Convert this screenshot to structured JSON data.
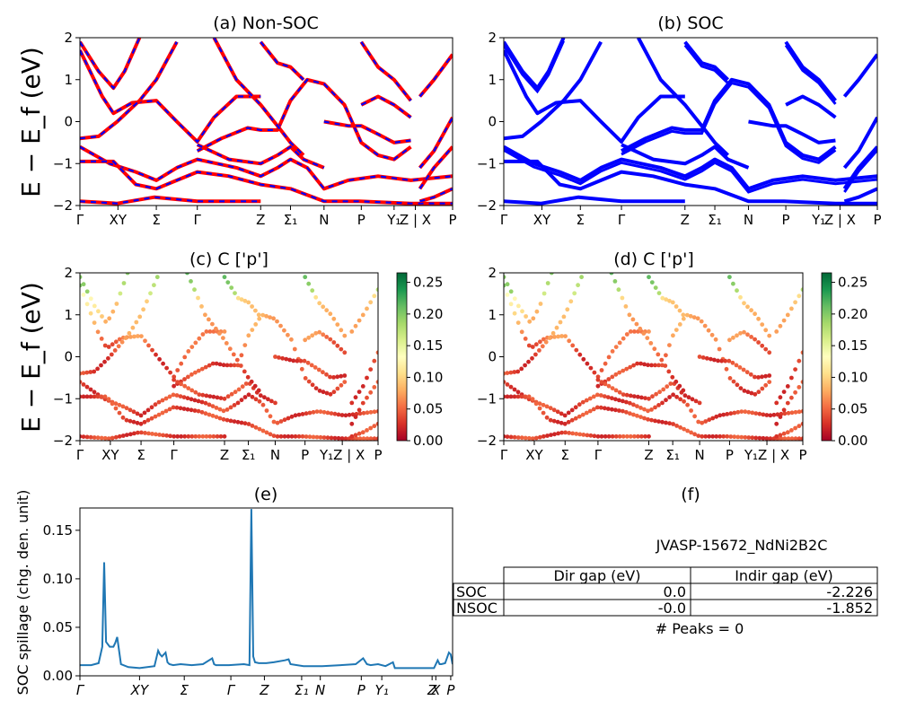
{
  "panels": {
    "a": {
      "title": "(a) Non-SOC",
      "ylabel": "E − E_f (eV)",
      "yticks": [
        "2",
        "1",
        "0",
        "−1",
        "−2"
      ],
      "xticks": [
        "Γ",
        "XY",
        "Σ",
        "Γ",
        "Z",
        "Σ₁",
        "N",
        "P",
        "Y₁",
        "Z | X",
        "P"
      ]
    },
    "b": {
      "title": "(b) SOC",
      "yticks": [
        "2",
        "1",
        "0",
        "−1",
        "−2"
      ],
      "xticks": [
        "Γ",
        "XY",
        "Σ",
        "Γ",
        "Z",
        "Σ₁",
        "N",
        "P",
        "Y₁",
        "Z | X",
        "P"
      ]
    },
    "c": {
      "title": "(c)  C ['p']",
      "ylabel": "E − E_f (eV)",
      "yticks": [
        "2",
        "1",
        "0",
        "−1",
        "−2"
      ],
      "xticks": [
        "Γ",
        "XY",
        "Σ",
        "Γ",
        "Z",
        "Σ₁",
        "N",
        "P",
        "Y₁Z | X",
        "P"
      ],
      "colorbar_ticks": [
        "0.25",
        "0.20",
        "0.15",
        "0.10",
        "0.05",
        "0.00"
      ]
    },
    "d": {
      "title": "(d) C ['p']",
      "yticks": [
        "2",
        "1",
        "0",
        "−1",
        "−2"
      ],
      "xticks": [
        "Γ",
        "XY",
        "Σ",
        "Γ",
        "Z",
        "Σ₁",
        "N",
        "P",
        "Y₁Z | X",
        "P"
      ],
      "colorbar_ticks": [
        "0.25",
        "0.20",
        "0.15",
        "0.10",
        "0.05",
        "0.00"
      ]
    },
    "e": {
      "title": "(e)",
      "ylabel": "SOC spillage (chg. den. unit)",
      "yticks": [
        "0.15",
        "0.10",
        "0.05",
        "0.00"
      ],
      "xticks": [
        "Γ",
        "XY",
        "Σ",
        "Γ",
        "Z",
        "Σ₁",
        "N",
        "P",
        "Y₁",
        "Z",
        "X",
        "P"
      ]
    },
    "f": {
      "title": "(f)",
      "material": "JVASP-15672_NdNi2B2C",
      "table": {
        "headers": [
          "",
          "Dir gap (eV)",
          "Indir gap (eV)"
        ],
        "rows": [
          [
            "SOC",
            "0.0",
            "-2.226"
          ],
          [
            "NSOC",
            "-0.0",
            "-1.852"
          ]
        ]
      },
      "peaks": "# Peaks = 0"
    }
  },
  "colors": {
    "nonsoc_red": "#ff0000",
    "soc_blue": "#0000ff",
    "spillage_line": "#1f77b4",
    "colormap": "RdYlGn"
  },
  "chart_data": [
    {
      "type": "line",
      "title": "(a) Non-SOC",
      "ylabel": "E − E_f (eV)",
      "ylim": [
        -2,
        2
      ],
      "xlim": [
        0,
        1
      ],
      "kpath": [
        "Γ",
        "X",
        "Y",
        "Σ",
        "Γ",
        "Z",
        "Σ₁",
        "N",
        "P",
        "Y₁",
        "Z",
        "X",
        "P"
      ],
      "kpath_positions": [
        0,
        0.09,
        0.115,
        0.205,
        0.315,
        0.485,
        0.565,
        0.655,
        0.755,
        0.843,
        0.888,
        0.912,
        1.0
      ],
      "series": [
        {
          "values": [
            [
              0,
              1.9
            ],
            [
              0.05,
              1.2
            ],
            [
              0.09,
              0.8
            ],
            [
              0.12,
              1.2
            ],
            [
              0.16,
              2.0
            ]
          ]
        },
        {
          "values": [
            [
              0,
              1.7
            ],
            [
              0.06,
              0.6
            ],
            [
              0.09,
              0.2
            ],
            [
              0.14,
              0.45
            ],
            [
              0.205,
              0.5
            ],
            [
              0.26,
              0.0
            ],
            [
              0.315,
              -0.48
            ],
            [
              0.36,
              0.1
            ],
            [
              0.42,
              0.6
            ],
            [
              0.485,
              0.6
            ]
          ]
        },
        {
          "values": [
            [
              0,
              -0.4
            ],
            [
              0.05,
              -0.35
            ],
            [
              0.1,
              0.0
            ],
            [
              0.16,
              0.5
            ],
            [
              0.205,
              1.0
            ],
            [
              0.26,
              1.9
            ]
          ]
        },
        {
          "values": [
            [
              0,
              -0.6
            ],
            [
              0.08,
              -1.0
            ],
            [
              0.15,
              -1.2
            ],
            [
              0.205,
              -1.4
            ],
            [
              0.26,
              -1.1
            ],
            [
              0.315,
              -0.9
            ],
            [
              0.42,
              -1.1
            ],
            [
              0.485,
              -1.3
            ],
            [
              0.53,
              -1.1
            ],
            [
              0.565,
              -0.9
            ],
            [
              0.61,
              -1.1
            ],
            [
              0.655,
              -1.6
            ],
            [
              0.72,
              -1.4
            ],
            [
              0.8,
              -1.3
            ],
            [
              0.888,
              -1.4
            ],
            [
              1.0,
              -1.3
            ]
          ]
        },
        {
          "values": [
            [
              0,
              -0.95
            ],
            [
              0.09,
              -0.95
            ],
            [
              0.15,
              -1.5
            ],
            [
              0.205,
              -1.6
            ],
            [
              0.26,
              -1.4
            ],
            [
              0.315,
              -1.2
            ],
            [
              0.4,
              -1.3
            ],
            [
              0.485,
              -1.5
            ],
            [
              0.565,
              -1.6
            ],
            [
              0.655,
              -1.9
            ],
            [
              0.75,
              -1.9
            ],
            [
              0.888,
              -1.95
            ],
            [
              1.0,
              -1.95
            ]
          ]
        },
        {
          "values": [
            [
              0,
              -1.9
            ],
            [
              0.1,
              -1.95
            ],
            [
              0.2,
              -1.8
            ],
            [
              0.315,
              -1.9
            ],
            [
              0.45,
              -1.9
            ],
            [
              0.485,
              -1.9
            ]
          ]
        },
        {
          "values": [
            [
              0.315,
              -0.7
            ],
            [
              0.38,
              -0.4
            ],
            [
              0.45,
              -0.15
            ],
            [
              0.485,
              -0.2
            ],
            [
              0.53,
              -0.2
            ],
            [
              0.565,
              0.5
            ],
            [
              0.61,
              1.0
            ],
            [
              0.655,
              0.9
            ],
            [
              0.71,
              0.4
            ],
            [
              0.755,
              -0.5
            ],
            [
              0.8,
              -0.8
            ],
            [
              0.843,
              -0.9
            ],
            [
              0.888,
              -0.6
            ]
          ]
        },
        {
          "values": [
            [
              0.315,
              -0.55
            ],
            [
              0.4,
              -0.9
            ],
            [
              0.485,
              -1.0
            ],
            [
              0.53,
              -0.8
            ],
            [
              0.565,
              -0.6
            ],
            [
              0.6,
              -0.9
            ],
            [
              0.655,
              -1.1
            ]
          ]
        },
        {
          "values": [
            [
              0.36,
              2.0
            ],
            [
              0.42,
              1.0
            ],
            [
              0.485,
              0.4
            ],
            [
              0.53,
              -0.1
            ],
            [
              0.565,
              -0.5
            ],
            [
              0.6,
              -0.8
            ]
          ]
        },
        {
          "values": [
            [
              0.485,
              1.9
            ],
            [
              0.53,
              1.4
            ],
            [
              0.565,
              1.3
            ],
            [
              0.6,
              1.0
            ]
          ]
        },
        {
          "values": [
            [
              0.655,
              0.0
            ],
            [
              0.72,
              -0.1
            ],
            [
              0.755,
              -0.1
            ],
            [
              0.8,
              -0.3
            ],
            [
              0.843,
              -0.5
            ],
            [
              0.888,
              -0.45
            ]
          ]
        },
        {
          "values": [
            [
              0.755,
              0.4
            ],
            [
              0.8,
              0.6
            ],
            [
              0.843,
              0.4
            ],
            [
              0.888,
              0.1
            ]
          ]
        },
        {
          "values": [
            [
              0.755,
              1.9
            ],
            [
              0.8,
              1.3
            ],
            [
              0.843,
              1.0
            ],
            [
              0.888,
              0.5
            ]
          ]
        },
        {
          "values": [
            [
              0.912,
              0.6
            ],
            [
              0.95,
              1.0
            ],
            [
              1.0,
              1.6
            ]
          ]
        },
        {
          "values": [
            [
              0.912,
              -1.1
            ],
            [
              0.95,
              -0.7
            ],
            [
              1.0,
              0.1
            ]
          ]
        },
        {
          "values": [
            [
              0.912,
              -1.6
            ],
            [
              0.95,
              -1.1
            ],
            [
              1.0,
              -0.6
            ]
          ]
        },
        {
          "values": [
            [
              0.912,
              -1.9
            ],
            [
              0.95,
              -1.8
            ],
            [
              1.0,
              -1.6
            ]
          ]
        }
      ]
    },
    {
      "type": "line",
      "title": "(b) SOC",
      "ylim": [
        -2,
        2
      ],
      "xlim": [
        0,
        1
      ],
      "kpath": [
        "Γ",
        "X",
        "Y",
        "Σ",
        "Γ",
        "Z",
        "Σ₁",
        "N",
        "P",
        "Y₁",
        "Z",
        "X",
        "P"
      ],
      "kpath_positions": [
        0,
        0.09,
        0.115,
        0.205,
        0.315,
        0.485,
        0.565,
        0.655,
        0.755,
        0.843,
        0.888,
        0.912,
        1.0
      ],
      "series_note": "same band structure as (a), drawn in blue"
    },
    {
      "type": "scatter",
      "title": "(c)  C ['p']",
      "ylabel": "E − E_f (eV)",
      "ylim": [
        -2,
        2
      ],
      "colorbar": {
        "min": 0.0,
        "max": 0.265,
        "colormap": "RdYlGn"
      },
      "series_note": "band points colored by C p-orbital weight"
    },
    {
      "type": "scatter",
      "title": "(d) C ['p']",
      "ylim": [
        -2,
        2
      ],
      "colorbar": {
        "min": 0.0,
        "max": 0.265,
        "colormap": "RdYlGn"
      },
      "series_note": "band points colored by C p-orbital weight"
    },
    {
      "type": "line",
      "title": "(e)",
      "ylabel": "SOC spillage (chg. den. unit)",
      "ylim": [
        0,
        0.173
      ],
      "xlim": [
        0,
        1
      ],
      "x": [
        0,
        0.03,
        0.05,
        0.06,
        0.065,
        0.07,
        0.08,
        0.09,
        0.095,
        0.1,
        0.11,
        0.13,
        0.16,
        0.2,
        0.21,
        0.215,
        0.22,
        0.23,
        0.235,
        0.24,
        0.25,
        0.27,
        0.3,
        0.33,
        0.355,
        0.36,
        0.365,
        0.4,
        0.44,
        0.455,
        0.46,
        0.465,
        0.47,
        0.48,
        0.5,
        0.52,
        0.55,
        0.56,
        0.565,
        0.6,
        0.65,
        0.7,
        0.74,
        0.76,
        0.77,
        0.78,
        0.8,
        0.82,
        0.84,
        0.845,
        0.85,
        0.9,
        0.95,
        0.96,
        0.965,
        0.97,
        0.98,
        0.99,
        0.995,
        1.0
      ],
      "values": [
        0.011,
        0.011,
        0.013,
        0.03,
        0.117,
        0.035,
        0.03,
        0.03,
        0.034,
        0.04,
        0.012,
        0.009,
        0.008,
        0.01,
        0.026,
        0.022,
        0.02,
        0.024,
        0.014,
        0.012,
        0.011,
        0.012,
        0.011,
        0.012,
        0.018,
        0.012,
        0.011,
        0.011,
        0.012,
        0.011,
        0.172,
        0.02,
        0.014,
        0.013,
        0.013,
        0.014,
        0.016,
        0.017,
        0.012,
        0.01,
        0.01,
        0.011,
        0.012,
        0.018,
        0.012,
        0.011,
        0.012,
        0.01,
        0.014,
        0.008,
        0.008,
        0.008,
        0.008,
        0.016,
        0.012,
        0.012,
        0.013,
        0.024,
        0.022,
        0.012
      ]
    }
  ]
}
